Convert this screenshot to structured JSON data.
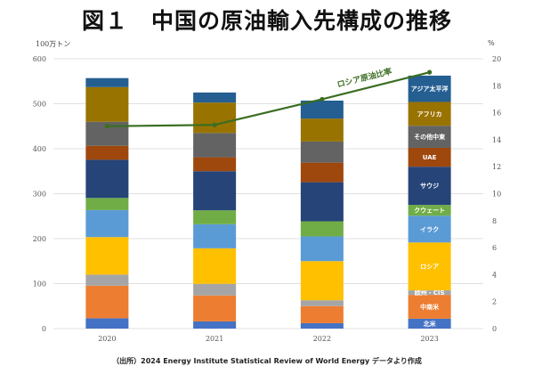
{
  "header": {
    "title": "図１　中国の原油輸入先構成の推移",
    "unit_left": "100万トン",
    "unit_right": "%",
    "source": "（出所）2024 Energy Institute Statistical Review of World Energy データより作成"
  },
  "chart_data": {
    "type": "bar",
    "stacked": true,
    "title": "図１　中国の原油輸入先構成の推移",
    "xlabel": "",
    "ylabel": "100万トン",
    "y2label": "%",
    "categories": [
      "2020",
      "2021",
      "2022",
      "2023"
    ],
    "ylim": [
      0,
      600
    ],
    "yticks": [
      0,
      100,
      200,
      300,
      400,
      500,
      600
    ],
    "y2lim": [
      0,
      20
    ],
    "y2ticks": [
      0,
      2,
      4,
      6,
      8,
      10,
      12,
      14,
      16,
      18,
      20
    ],
    "grid": true,
    "series": [
      {
        "name": "北米",
        "color": "#4472C4",
        "values": [
          23,
          16,
          12,
          22
        ]
      },
      {
        "name": "中南米",
        "color": "#ED7D31",
        "values": [
          72.5,
          57.7,
          38,
          53
        ]
      },
      {
        "name": "欧州・CIS",
        "color": "#A5A5A5",
        "values": [
          24.5,
          25.8,
          13,
          10
        ]
      },
      {
        "name": "ロシア",
        "color": "#FFC000",
        "values": [
          83.5,
          79,
          87,
          106.5
        ]
      },
      {
        "name": "イラク",
        "color": "#5B9BD5",
        "values": [
          60,
          53.5,
          55,
          59.5
        ]
      },
      {
        "name": "クウェート",
        "color": "#70AD47",
        "values": [
          27,
          31,
          33.5,
          24
        ]
      },
      {
        "name": "サウジ",
        "color": "#264478",
        "values": [
          85,
          87,
          87,
          85
        ]
      },
      {
        "name": "UAE",
        "color": "#9E480E",
        "values": [
          31,
          31,
          43.5,
          42
        ]
      },
      {
        "name": "その他中東",
        "color": "#636363",
        "values": [
          53.5,
          54,
          47,
          49
        ]
      },
      {
        "name": "アフリカ",
        "color": "#997300",
        "values": [
          77,
          67.6,
          51,
          53
        ]
      },
      {
        "name": "アジア太平洋",
        "color": "#255E91",
        "values": [
          20,
          22.4,
          40,
          58.5
        ]
      }
    ],
    "line_series": {
      "name": "ロシア原油比率",
      "axis": "right",
      "color": "#3B6E22",
      "values": [
        15.0,
        15.1,
        17.0,
        19.0
      ]
    },
    "segment_labels_on_category": "2023"
  }
}
